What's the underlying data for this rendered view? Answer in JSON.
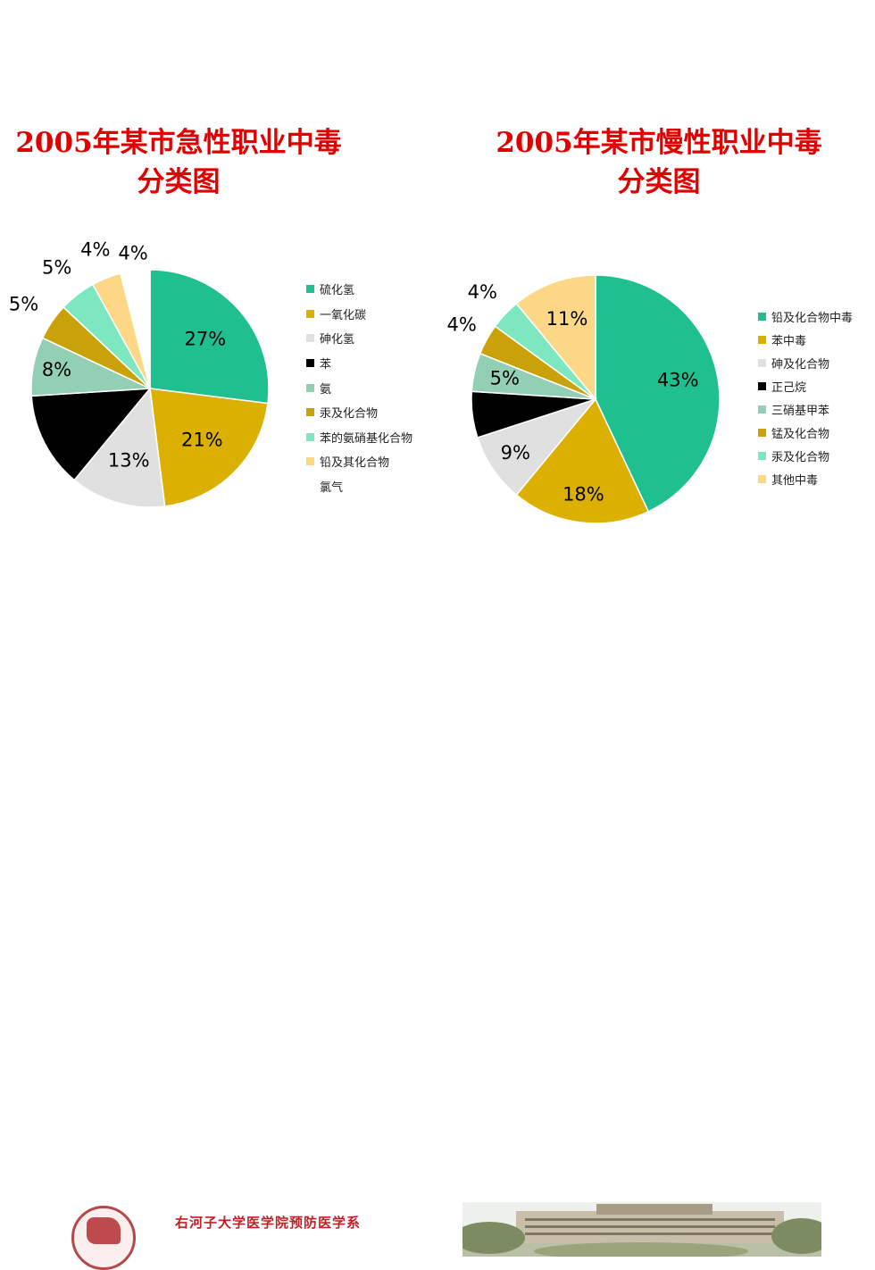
{
  "chart_data": [
    {
      "type": "pie",
      "title_line1": "2005年某市急性职业中毒",
      "title_line2": "分类图",
      "categories": [
        "硫化氢",
        "一氧化碳",
        "砷化氢",
        "苯",
        "氨",
        "汞及化合物",
        "苯的氨硝基化合物",
        "铅及其化合物",
        "氯气"
      ],
      "values": [
        27,
        21,
        13,
        13,
        8,
        5,
        5,
        4,
        4
      ],
      "labels": [
        "27%",
        "21%",
        "13%",
        "",
        "8%",
        "5%",
        "5%",
        "4%",
        "4%"
      ],
      "colors": [
        "#1fbf8f",
        "#dcb000",
        "#e0e0e0",
        "#000000",
        "#93cfb5",
        "#c9a20a",
        "#7de8c0",
        "#fcd886",
        "#ffffff"
      ],
      "legend_position": "right"
    },
    {
      "type": "pie",
      "title_line1": "2005年某市慢性职业中毒",
      "title_line2": "分类图",
      "categories": [
        "铅及化合物中毒",
        "苯中毒",
        "砷及化合物",
        "正己烷",
        "三硝基甲苯",
        "锰及化合物",
        "汞及化合物",
        "其他中毒"
      ],
      "values": [
        43,
        18,
        9,
        6,
        5,
        4,
        4,
        11
      ],
      "labels": [
        "43%",
        "18%",
        "9%",
        "",
        "5%",
        "4%",
        "4%",
        "11%"
      ],
      "colors": [
        "#1fbf8f",
        "#dcb000",
        "#e0e0e0",
        "#000000",
        "#93cfb5",
        "#c9a20a",
        "#7de8c0",
        "#fcd886"
      ],
      "legend_position": "right"
    }
  ],
  "footer": {
    "department_text": "右河子大学医学院预防医学系"
  }
}
